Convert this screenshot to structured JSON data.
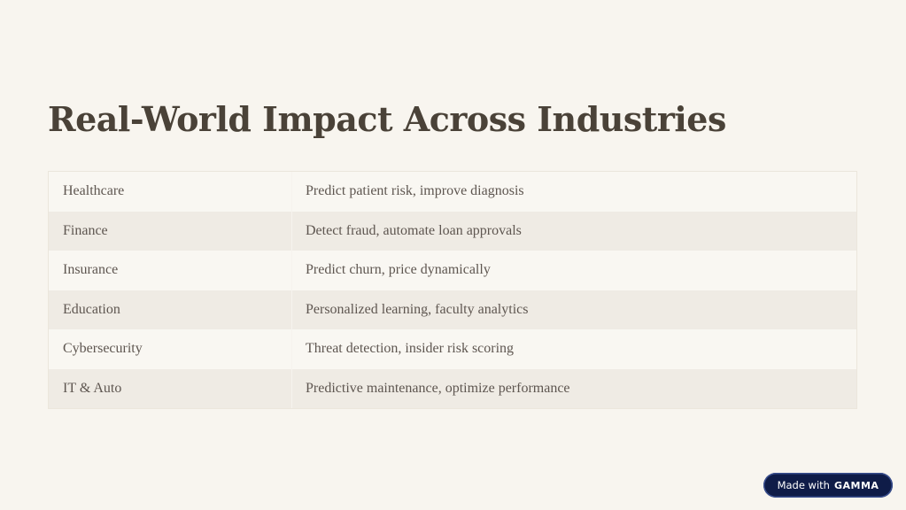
{
  "slide": {
    "title": "Real-World Impact Across Industries"
  },
  "table": {
    "rows": [
      {
        "industry": "Healthcare",
        "use_case": "Predict patient risk, improve diagnosis"
      },
      {
        "industry": "Finance",
        "use_case": "Detect fraud, automate loan approvals"
      },
      {
        "industry": "Insurance",
        "use_case": "Predict churn, price dynamically"
      },
      {
        "industry": "Education",
        "use_case": "Personalized learning, faculty analytics"
      },
      {
        "industry": "Cybersecurity",
        "use_case": "Threat detection, insider risk scoring"
      },
      {
        "industry": "IT & Auto",
        "use_case": "Predictive maintenance, optimize performance"
      }
    ]
  },
  "badge": {
    "prefix": "Made with",
    "brand": "GAMMA"
  },
  "colors": {
    "background": "#f8f5ef",
    "title": "#4a4238",
    "row_light": "#f9f7f2",
    "row_dark": "#efebe4",
    "badge": "#0f1c48"
  }
}
